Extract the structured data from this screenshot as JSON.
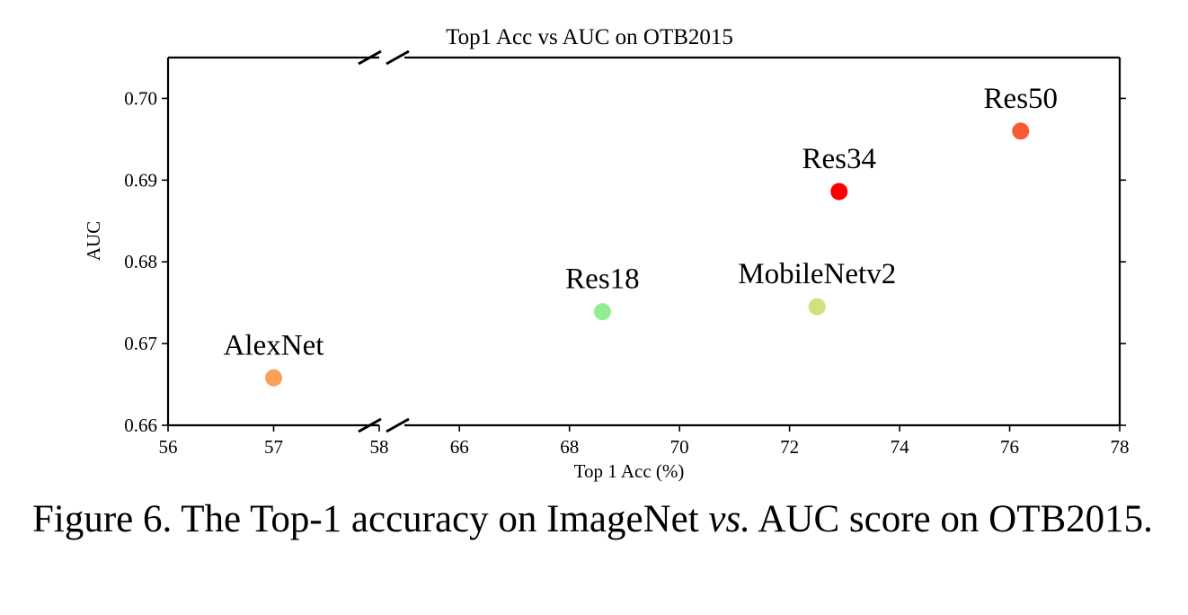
{
  "chart_data": {
    "type": "scatter",
    "title": "Top1 Acc vs AUC on OTB2015",
    "xlabel": "Top 1 Acc (%)",
    "ylabel": "AUC",
    "x_break": true,
    "xlim_left": [
      56,
      58
    ],
    "xlim_right": [
      65,
      78
    ],
    "ylim": [
      0.66,
      0.705
    ],
    "left_xticks": [
      "56",
      "57",
      "58"
    ],
    "right_xticks": [
      "66",
      "68",
      "70",
      "72",
      "74",
      "76",
      "78"
    ],
    "yticks": [
      "0.66",
      "0.67",
      "0.68",
      "0.69",
      "0.70"
    ],
    "grid": false,
    "points": [
      {
        "label": "AlexNet",
        "x": 57.0,
        "y": 0.6658,
        "color": "#f9a05a"
      },
      {
        "label": "Res18",
        "x": 68.6,
        "y": 0.6739,
        "color": "#90ee90"
      },
      {
        "label": "MobileNetv2",
        "x": 72.5,
        "y": 0.6745,
        "color": "#d3df80"
      },
      {
        "label": "Res34",
        "x": 72.9,
        "y": 0.6886,
        "color": "#ff0000"
      },
      {
        "label": "Res50",
        "x": 76.2,
        "y": 0.696,
        "color": "#f85a35"
      }
    ]
  },
  "caption": {
    "prefix": "Figure 6. The Top-1 accuracy on ImageNet ",
    "vs": "vs.",
    "suffix": "  AUC score on OTB2015."
  }
}
